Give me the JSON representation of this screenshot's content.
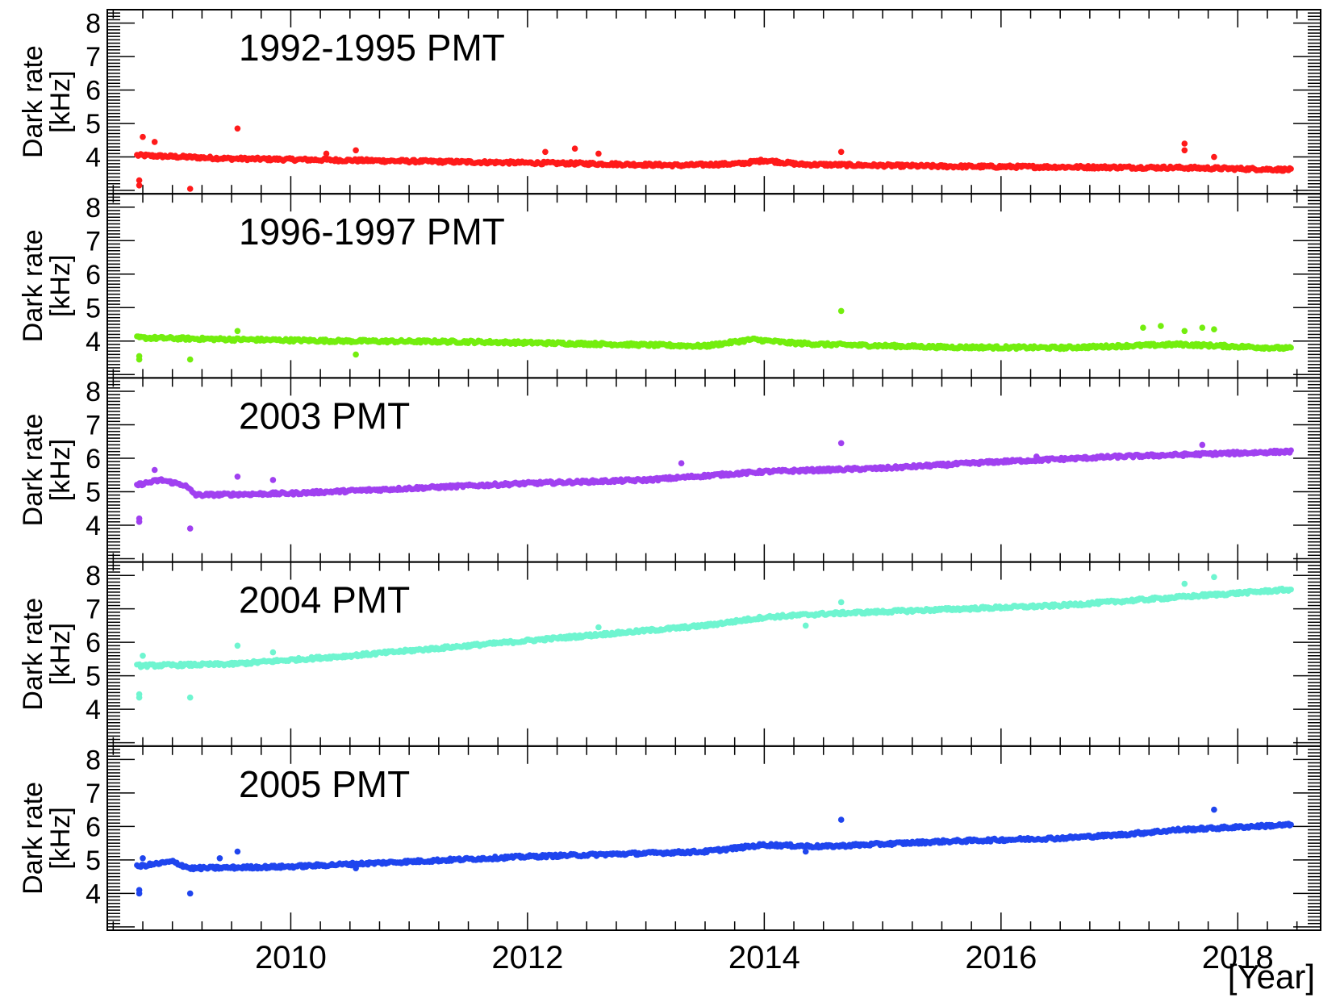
{
  "chart_data": {
    "type": "scatter",
    "xlabel": "[Year]",
    "ylabel_line1": "Dark rate",
    "ylabel_line2": "[kHz]",
    "xlim": [
      2008.45,
      2018.7
    ],
    "ylim": [
      2.9,
      8.4
    ],
    "xticks": [
      2010,
      2012,
      2014,
      2016,
      2018
    ],
    "yticks": [
      4,
      5,
      6,
      7,
      8
    ],
    "grid": false,
    "panels": [
      {
        "title": "1992-1995 PMT",
        "color": "#ff1a1a",
        "trend": [
          [
            2008.7,
            4.05
          ],
          [
            2009.5,
            3.95
          ],
          [
            2010.5,
            3.9
          ],
          [
            2011.5,
            3.85
          ],
          [
            2012.5,
            3.8
          ],
          [
            2013.3,
            3.75
          ],
          [
            2013.8,
            3.8
          ],
          [
            2014.0,
            3.9
          ],
          [
            2014.3,
            3.78
          ],
          [
            2015.5,
            3.72
          ],
          [
            2016.5,
            3.7
          ],
          [
            2017.5,
            3.68
          ],
          [
            2018.45,
            3.62
          ]
        ],
        "outliers": [
          [
            2008.72,
            3.15
          ],
          [
            2008.72,
            3.3
          ],
          [
            2008.75,
            4.6
          ],
          [
            2008.85,
            4.45
          ],
          [
            2009.15,
            3.05
          ],
          [
            2009.55,
            4.85
          ],
          [
            2010.3,
            4.1
          ],
          [
            2010.55,
            4.2
          ],
          [
            2012.15,
            4.15
          ],
          [
            2012.4,
            4.25
          ],
          [
            2012.6,
            4.1
          ],
          [
            2014.65,
            4.15
          ],
          [
            2017.55,
            4.4
          ],
          [
            2017.55,
            4.2
          ],
          [
            2017.8,
            4.0
          ]
        ]
      },
      {
        "title": "1996-1997 PMT",
        "color": "#73ee0e",
        "trend": [
          [
            2008.7,
            4.1
          ],
          [
            2009.5,
            4.05
          ],
          [
            2010.5,
            4.0
          ],
          [
            2011.5,
            3.98
          ],
          [
            2012.5,
            3.92
          ],
          [
            2013.5,
            3.85
          ],
          [
            2013.9,
            4.05
          ],
          [
            2014.2,
            3.95
          ],
          [
            2014.5,
            3.9
          ],
          [
            2015.5,
            3.82
          ],
          [
            2016.5,
            3.8
          ],
          [
            2017.0,
            3.85
          ],
          [
            2017.5,
            3.9
          ],
          [
            2018.45,
            3.78
          ]
        ],
        "outliers": [
          [
            2008.72,
            3.45
          ],
          [
            2008.72,
            3.55
          ],
          [
            2009.15,
            3.45
          ],
          [
            2009.55,
            4.3
          ],
          [
            2010.55,
            3.6
          ],
          [
            2014.65,
            4.9
          ],
          [
            2017.2,
            4.4
          ],
          [
            2017.35,
            4.45
          ],
          [
            2017.55,
            4.3
          ],
          [
            2017.7,
            4.4
          ],
          [
            2017.8,
            4.35
          ]
        ]
      },
      {
        "title": "2003 PMT",
        "color": "#a040f0",
        "trend": [
          [
            2008.7,
            5.2
          ],
          [
            2008.9,
            5.35
          ],
          [
            2009.1,
            5.2
          ],
          [
            2009.2,
            4.9
          ],
          [
            2010.0,
            4.95
          ],
          [
            2011.0,
            5.1
          ],
          [
            2012.0,
            5.25
          ],
          [
            2013.0,
            5.35
          ],
          [
            2014.0,
            5.6
          ],
          [
            2015.0,
            5.7
          ],
          [
            2016.0,
            5.9
          ],
          [
            2017.0,
            6.05
          ],
          [
            2018.45,
            6.2
          ]
        ],
        "outliers": [
          [
            2008.72,
            4.1
          ],
          [
            2008.72,
            4.2
          ],
          [
            2008.85,
            5.65
          ],
          [
            2009.15,
            3.9
          ],
          [
            2009.55,
            5.45
          ],
          [
            2009.85,
            5.35
          ],
          [
            2013.3,
            5.85
          ],
          [
            2014.65,
            6.45
          ],
          [
            2016.3,
            6.05
          ],
          [
            2017.7,
            6.4
          ]
        ]
      },
      {
        "title": "2004 PMT",
        "color": "#6ff5d0",
        "trend": [
          [
            2008.7,
            5.3
          ],
          [
            2009.5,
            5.35
          ],
          [
            2010.5,
            5.6
          ],
          [
            2011.5,
            5.9
          ],
          [
            2012.5,
            6.2
          ],
          [
            2013.5,
            6.5
          ],
          [
            2014.0,
            6.75
          ],
          [
            2014.5,
            6.85
          ],
          [
            2015.5,
            6.98
          ],
          [
            2016.5,
            7.1
          ],
          [
            2017.5,
            7.35
          ],
          [
            2018.45,
            7.58
          ]
        ],
        "outliers": [
          [
            2008.72,
            4.35
          ],
          [
            2008.72,
            4.45
          ],
          [
            2008.75,
            5.6
          ],
          [
            2009.15,
            4.35
          ],
          [
            2009.55,
            5.9
          ],
          [
            2009.85,
            5.7
          ],
          [
            2012.6,
            6.45
          ],
          [
            2014.35,
            6.5
          ],
          [
            2014.65,
            7.2
          ],
          [
            2017.55,
            7.75
          ],
          [
            2017.8,
            7.95
          ]
        ]
      },
      {
        "title": "2005 PMT",
        "color": "#1f45ee",
        "trend": [
          [
            2008.7,
            4.8
          ],
          [
            2009.0,
            4.95
          ],
          [
            2009.15,
            4.75
          ],
          [
            2010.0,
            4.8
          ],
          [
            2011.0,
            4.95
          ],
          [
            2012.0,
            5.1
          ],
          [
            2013.0,
            5.2
          ],
          [
            2013.5,
            5.25
          ],
          [
            2014.0,
            5.45
          ],
          [
            2014.5,
            5.4
          ],
          [
            2015.5,
            5.55
          ],
          [
            2016.5,
            5.65
          ],
          [
            2017.0,
            5.75
          ],
          [
            2017.5,
            5.9
          ],
          [
            2018.45,
            6.05
          ]
        ],
        "outliers": [
          [
            2008.72,
            4.0
          ],
          [
            2008.72,
            4.1
          ],
          [
            2008.75,
            5.05
          ],
          [
            2009.15,
            4.0
          ],
          [
            2009.4,
            5.05
          ],
          [
            2009.55,
            5.25
          ],
          [
            2010.55,
            4.75
          ],
          [
            2014.35,
            5.25
          ],
          [
            2014.65,
            6.2
          ],
          [
            2017.8,
            6.5
          ]
        ]
      }
    ]
  }
}
